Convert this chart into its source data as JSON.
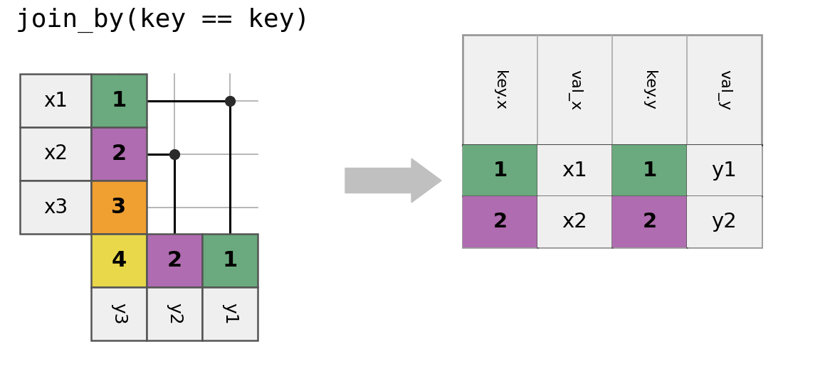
{
  "title": "join_by(key == key)",
  "bg_color": "#ffffff",
  "cell_white": "#efefef",
  "cell_header": "#f5f5f5",
  "color_green": "#6aaa7e",
  "color_purple": "#b06cb0",
  "color_orange": "#f0a030",
  "color_yellow": "#e8d84a",
  "color_dot": "#2a2a2a",
  "arrow_color": "#c0c0c0",
  "grid_color": "#aaaaaa",
  "line_color": "#333333",
  "border_color": "#555555",
  "x_table": {
    "rows": [
      {
        "val": "x1",
        "key": "1",
        "key_color": "#6aaa7e"
      },
      {
        "val": "x2",
        "key": "2",
        "key_color": "#b06cb0"
      },
      {
        "val": "x3",
        "key": "3",
        "key_color": "#f0a030"
      }
    ]
  },
  "y_table": {
    "cols": [
      {
        "val": "y3",
        "key": "4",
        "key_color": "#e8d84a"
      },
      {
        "val": "y2",
        "key": "2",
        "key_color": "#b06cb0"
      },
      {
        "val": "y1",
        "key": "1",
        "key_color": "#6aaa7e"
      }
    ]
  },
  "result_table": {
    "headers": [
      "key.x",
      "val_x",
      "key.y",
      "val_y"
    ],
    "rows": [
      {
        "key_x": "1",
        "val_x": "x1",
        "key_y": "1",
        "val_y": "y1",
        "key_color": "#6aaa7e"
      },
      {
        "key_x": "2",
        "val_x": "x2",
        "key_y": "2",
        "val_y": "y2",
        "key_color": "#b06cb0"
      }
    ]
  }
}
